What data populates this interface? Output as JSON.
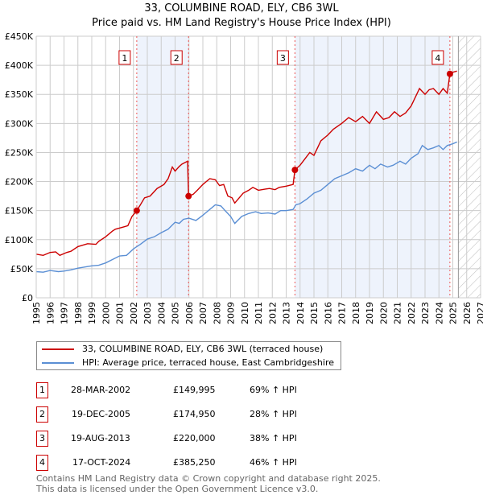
{
  "chart_data": {
    "type": "line",
    "title": "33, COLUMBINE ROAD, ELY, CB6 3WL",
    "subtitle": "Price paid vs. HM Land Registry's House Price Index (HPI)",
    "xlim": [
      1995,
      2027
    ],
    "ylim": [
      0,
      450000
    ],
    "x_ticks": [
      "1995",
      "1996",
      "1997",
      "1998",
      "1999",
      "2000",
      "2001",
      "2002",
      "2003",
      "2004",
      "2005",
      "2006",
      "2007",
      "2008",
      "2009",
      "2010",
      "2011",
      "2012",
      "2013",
      "2014",
      "2015",
      "2016",
      "2017",
      "2018",
      "2019",
      "2020",
      "2021",
      "2022",
      "2023",
      "2024",
      "2025",
      "2026",
      "2027"
    ],
    "y_ticks": [
      {
        "v": 0,
        "label": "£0"
      },
      {
        "v": 50000,
        "label": "£50K"
      },
      {
        "v": 100000,
        "label": "£100K"
      },
      {
        "v": 150000,
        "label": "£150K"
      },
      {
        "v": 200000,
        "label": "£200K"
      },
      {
        "v": 250000,
        "label": "£250K"
      },
      {
        "v": 300000,
        "label": "£300K"
      },
      {
        "v": 350000,
        "label": "£350K"
      },
      {
        "v": 400000,
        "label": "£400K"
      },
      {
        "v": 450000,
        "label": "£450K"
      }
    ],
    "grid": true,
    "shaded_ranges": [
      [
        2002.24,
        2005.97
      ],
      [
        2013.63,
        2024.79
      ]
    ],
    "forecast_start": 2025.4,
    "series": [
      {
        "name": "33, COLUMBINE ROAD, ELY, CB6 3WL (terraced house)",
        "color": "#cc0000",
        "x": [
          1995,
          1995.5,
          1996,
          1996.4,
          1996.7,
          1997.2,
          1997.5,
          1998,
          1998.7,
          1999.3,
          1999.5,
          2000,
          2000.5,
          2000.7,
          2001.3,
          2001.6,
          2001.9,
          2002.24,
          2002.5,
          2002.8,
          2003.2,
          2003.7,
          2004.2,
          2004.5,
          2004.8,
          2005,
          2005.3,
          2005.5,
          2005.9,
          2005.97,
          2006.3,
          2006.6,
          2007,
          2007.5,
          2007.9,
          2008.2,
          2008.5,
          2008.8,
          2009.1,
          2009.3,
          2009.9,
          2010.3,
          2010.6,
          2011,
          2011.5,
          2011.8,
          2012.2,
          2012.5,
          2013,
          2013.5,
          2013.63,
          2014,
          2014.7,
          2015,
          2015.5,
          2016,
          2016.4,
          2017,
          2017.5,
          2018,
          2018.5,
          2019,
          2019.5,
          2020,
          2020.4,
          2020.8,
          2021.2,
          2021.6,
          2022,
          2022.6,
          2023,
          2023.3,
          2023.6,
          2024,
          2024.3,
          2024.6,
          2024.79,
          2025,
          2025.3
        ],
        "y": [
          75000,
          73000,
          78000,
          79000,
          73000,
          78000,
          80000,
          88000,
          93000,
          92000,
          97000,
          105000,
          115000,
          118000,
          122000,
          124000,
          140000,
          149995,
          160000,
          172000,
          175000,
          188000,
          195000,
          205000,
          225000,
          218000,
          226000,
          230000,
          235000,
          174950,
          178000,
          185000,
          195000,
          205000,
          203000,
          193000,
          195000,
          175000,
          172000,
          163000,
          180000,
          185000,
          190000,
          185000,
          187000,
          188000,
          186000,
          190000,
          192000,
          195000,
          220000,
          228000,
          250000,
          245000,
          270000,
          280000,
          290000,
          300000,
          310000,
          303000,
          312000,
          300000,
          320000,
          307000,
          310000,
          320000,
          312000,
          318000,
          330000,
          360000,
          350000,
          358000,
          360000,
          350000,
          360000,
          352000,
          385250,
          388000,
          390000
        ]
      },
      {
        "name": "HPI: Average price, terraced house, East Cambridgeshire",
        "color": "#5b8fd4",
        "x": [
          1995,
          1995.5,
          1996,
          1996.6,
          1997,
          1997.5,
          1998,
          1999,
          1999.5,
          2000,
          2000.5,
          2001,
          2001.5,
          2002,
          2002.24,
          2002.5,
          2003,
          2003.5,
          2004,
          2004.5,
          2005,
          2005.3,
          2005.6,
          2006,
          2006.5,
          2007,
          2007.5,
          2007.9,
          2008.3,
          2008.6,
          2009,
          2009.3,
          2009.8,
          2010.3,
          2010.8,
          2011.2,
          2011.7,
          2012.2,
          2012.6,
          2013,
          2013.5,
          2013.7,
          2014,
          2014.5,
          2015,
          2015.5,
          2016,
          2016.5,
          2017,
          2017.5,
          2018,
          2018.5,
          2019,
          2019.4,
          2019.8,
          2020.3,
          2020.7,
          2021.2,
          2021.6,
          2022,
          2022.5,
          2022.8,
          2023.2,
          2023.6,
          2024,
          2024.3,
          2024.6,
          2025,
          2025.3
        ],
        "y": [
          45000,
          44000,
          47000,
          45000,
          46000,
          48000,
          51000,
          55000,
          56000,
          60000,
          66000,
          72000,
          73000,
          84000,
          88000,
          92000,
          101000,
          105000,
          112000,
          118000,
          130000,
          128000,
          135000,
          137000,
          133000,
          142000,
          152000,
          160000,
          158000,
          150000,
          140000,
          128000,
          140000,
          145000,
          148000,
          145000,
          146000,
          144000,
          150000,
          150000,
          152000,
          160000,
          162000,
          170000,
          180000,
          185000,
          195000,
          205000,
          210000,
          215000,
          222000,
          218000,
          228000,
          222000,
          230000,
          225000,
          228000,
          235000,
          230000,
          240000,
          248000,
          262000,
          255000,
          258000,
          262000,
          255000,
          262000,
          265000,
          268000
        ]
      }
    ],
    "markers": [
      {
        "label": "1",
        "x": 2002.24,
        "y": 149995
      },
      {
        "label": "2",
        "x": 2005.97,
        "y": 174950
      },
      {
        "label": "3",
        "x": 2013.63,
        "y": 220000
      },
      {
        "label": "4",
        "x": 2024.79,
        "y": 385250
      }
    ]
  },
  "legend": [
    {
      "label": "33, COLUMBINE ROAD, ELY, CB6 3WL (terraced house)",
      "color": "#cc0000"
    },
    {
      "label": "HPI: Average price, terraced house, East Cambridgeshire",
      "color": "#5b8fd4"
    }
  ],
  "transactions": [
    {
      "num": "1",
      "date": "28-MAR-2002",
      "price": "£149,995",
      "hpi": "69% ↑ HPI"
    },
    {
      "num": "2",
      "date": "19-DEC-2005",
      "price": "£174,950",
      "hpi": "28% ↑ HPI"
    },
    {
      "num": "3",
      "date": "19-AUG-2013",
      "price": "£220,000",
      "hpi": "38% ↑ HPI"
    },
    {
      "num": "4",
      "date": "17-OCT-2024",
      "price": "£385,250",
      "hpi": "46% ↑ HPI"
    }
  ],
  "footer": [
    "Contains HM Land Registry data © Crown copyright and database right 2025.",
    "This data is licensed under the Open Government Licence v3.0."
  ]
}
